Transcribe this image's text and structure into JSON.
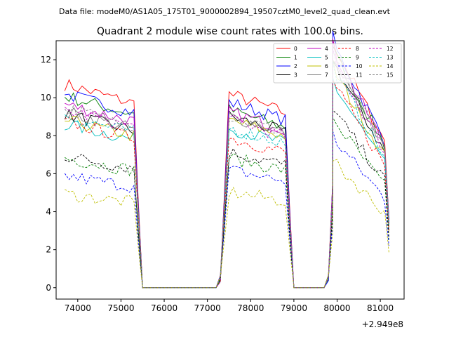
{
  "header": {
    "datafile": "Data file: modeM0/AS1A05_175T01_9000002894_19507cztM0_level2_quad_clean.evt"
  },
  "chart_data": {
    "type": "line",
    "title": "Quadrant 2 module wise count rates with 100.0s bins.",
    "xlabel": "",
    "ylabel": "",
    "offset_label": "+2.949e8",
    "xlim": [
      73500,
      81550
    ],
    "ylim": [
      -0.6,
      13.0
    ],
    "xticks": [
      74000,
      75000,
      76000,
      77000,
      78000,
      79000,
      80000,
      81000
    ],
    "yticks": [
      0,
      2,
      4,
      6,
      8,
      10,
      12
    ],
    "legend_position": "top-right",
    "segments": [
      {
        "x_start": 73700,
        "x_end": 75300
      },
      {
        "x_start": 77500,
        "x_end": 78800
      },
      {
        "x_start": 79900,
        "x_end": 81100
      }
    ],
    "gaps": [
      {
        "x_start": 75500,
        "x_end": 77200
      },
      {
        "x_start": 79000,
        "x_end": 79700
      }
    ],
    "series": [
      {
        "name": "0",
        "color": "#ff0000",
        "style": "solid",
        "levels": [
          10.2,
          9.7,
          10.3
        ]
      },
      {
        "name": "1",
        "color": "#008000",
        "style": "solid",
        "levels": [
          9.6,
          8.9,
          10.0
        ]
      },
      {
        "name": "2",
        "color": "#0000ff",
        "style": "solid",
        "levels": [
          9.7,
          9.3,
          10.3
        ]
      },
      {
        "name": "3",
        "color": "#000000",
        "style": "solid",
        "levels": [
          8.7,
          8.6,
          9.5
        ]
      },
      {
        "name": "4",
        "color": "#bf00bf",
        "style": "solid",
        "levels": [
          9.2,
          8.8,
          10.0
        ]
      },
      {
        "name": "5",
        "color": "#00bfbf",
        "style": "solid",
        "levels": [
          8.2,
          8.0,
          8.6
        ]
      },
      {
        "name": "6",
        "color": "#bfbf00",
        "style": "solid",
        "levels": [
          8.4,
          8.4,
          9.2
        ]
      },
      {
        "name": "7",
        "color": "#808080",
        "style": "solid",
        "levels": [
          8.8,
          8.6,
          9.6
        ]
      },
      {
        "name": "8",
        "color": "#ff0000",
        "style": "dashed",
        "levels": [
          8.3,
          7.5,
          8.6
        ]
      },
      {
        "name": "9",
        "color": "#008000",
        "style": "dashed",
        "levels": [
          6.5,
          6.5,
          7.1
        ]
      },
      {
        "name": "10",
        "color": "#0000ff",
        "style": "dashed",
        "levels": [
          5.6,
          5.9,
          6.3
        ]
      },
      {
        "name": "11",
        "color": "#000000",
        "style": "dashed",
        "levels": [
          6.6,
          6.8,
          7.5
        ]
      },
      {
        "name": "12",
        "color": "#bf00bf",
        "style": "dashed",
        "levels": [
          8.9,
          8.4,
          9.6
        ]
      },
      {
        "name": "13",
        "color": "#00bfbf",
        "style": "dashed",
        "levels": [
          8.6,
          8.0,
          9.2
        ]
      },
      {
        "name": "14",
        "color": "#bfbf00",
        "style": "dashed",
        "levels": [
          4.7,
          4.8,
          5.3
        ]
      },
      {
        "name": "15",
        "color": "#808080",
        "style": "dashed",
        "levels": [
          9.0,
          8.6,
          9.8
        ]
      }
    ]
  }
}
